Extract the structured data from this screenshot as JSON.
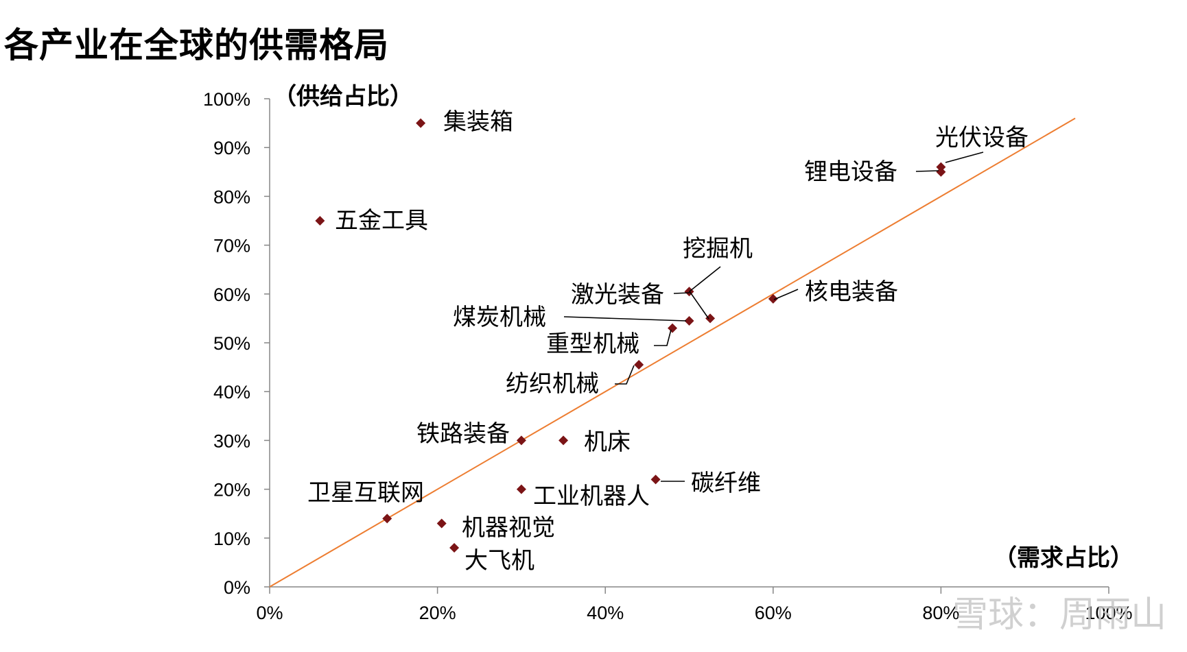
{
  "title": "各产业在全球的供需格局",
  "watermark": "雪球：周雨山",
  "chart_data": {
    "type": "scatter",
    "xlabel": "（需求占比）",
    "ylabel": "（供给占比）",
    "xlim": [
      0,
      100
    ],
    "ylim": [
      0,
      100
    ],
    "x_ticks": [
      "0%",
      "20%",
      "40%",
      "60%",
      "80%",
      "100%"
    ],
    "y_ticks": [
      "0%",
      "10%",
      "20%",
      "30%",
      "40%",
      "50%",
      "60%",
      "70%",
      "80%",
      "90%",
      "100%"
    ],
    "reference_line": {
      "from": [
        0,
        0
      ],
      "to": [
        96,
        96
      ],
      "color": "#ED7D31"
    },
    "marker_color": "#7B1416",
    "grid": false,
    "points": [
      {
        "label": "集装箱",
        "x": 18,
        "y": 95
      },
      {
        "label": "五金工具",
        "x": 6,
        "y": 75
      },
      {
        "label": "光伏设备",
        "x": 80,
        "y": 86
      },
      {
        "label": "锂电设备",
        "x": 80,
        "y": 85
      },
      {
        "label": "挖掘机",
        "x": 52.5,
        "y": 55
      },
      {
        "label": "激光装备",
        "x": 50,
        "y": 60.5
      },
      {
        "label": "核电装备",
        "x": 60,
        "y": 59
      },
      {
        "label": "煤炭机械",
        "x": 50,
        "y": 54.5
      },
      {
        "label": "重型机械",
        "x": 48,
        "y": 53
      },
      {
        "label": "纺织机械",
        "x": 44,
        "y": 45.5
      },
      {
        "label": "铁路装备",
        "x": 30,
        "y": 30
      },
      {
        "label": "机床",
        "x": 35,
        "y": 30
      },
      {
        "label": "碳纤维",
        "x": 46,
        "y": 22
      },
      {
        "label": "工业机器人",
        "x": 30,
        "y": 20
      },
      {
        "label": "卫星互联网",
        "x": 14,
        "y": 14
      },
      {
        "label": "机器视觉",
        "x": 20.5,
        "y": 13
      },
      {
        "label": "大飞机",
        "x": 22,
        "y": 8
      }
    ]
  }
}
